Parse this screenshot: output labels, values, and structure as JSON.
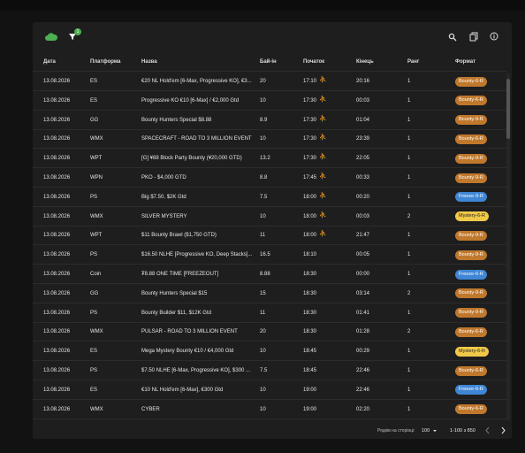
{
  "toolbar": {
    "filter_count": "1"
  },
  "table": {
    "headers": [
      "Дата",
      "Платформа",
      "Назва",
      "Бай-ін",
      "Початок",
      "Кінець",
      "Ранг",
      "Формат"
    ],
    "rows": [
      {
        "cells": [
          "13.08.2026",
          "ES",
          "€20 NL Hold'em [6-Max, Progressive KO], €3...",
          "20",
          "17:10",
          "20:16",
          "1",
          "Bounty-6-R"
        ],
        "late": true,
        "kind": "bounty"
      },
      {
        "cells": [
          "13.08.2026",
          "ES",
          "Progressive KO €10 [6-Max] / €2,000 Gtd",
          "10",
          "17:30",
          "00:03",
          "1",
          "Bounty-6-R"
        ],
        "late": true,
        "kind": "bounty"
      },
      {
        "cells": [
          "13.08.2026",
          "GG",
          "Bounty Hunters Special $8.88",
          "8.9",
          "17:30",
          "01:04",
          "1",
          "Bounty-9-R"
        ],
        "late": true,
        "kind": "bounty"
      },
      {
        "cells": [
          "13.08.2026",
          "WMX",
          "SPACECRAFT - ROAD TO 3 MILLION EVENT",
          "10",
          "17:30",
          "23:39",
          "1",
          "Bounty-6-R"
        ],
        "late": true,
        "kind": "bounty"
      },
      {
        "cells": [
          "13.08.2026",
          "WPT",
          "[G] ¥88 Block Party Bounty (¥20,000 GTD)",
          "13.2",
          "17:30",
          "22:05",
          "1",
          "Bounty-9-R"
        ],
        "late": true,
        "kind": "bounty"
      },
      {
        "cells": [
          "13.08.2026",
          "WPN",
          "PKO - $4,000 GTD",
          "8.8",
          "17:45",
          "00:33",
          "1",
          "Bounty-9-R"
        ],
        "late": true,
        "kind": "bounty"
      },
      {
        "cells": [
          "13.08.2026",
          "PS",
          "Big $7.50, $2K Gtd",
          "7.5",
          "18:00",
          "00:20",
          "1",
          "Freeze-9-R"
        ],
        "late": true,
        "kind": "freeze"
      },
      {
        "cells": [
          "13.08.2026",
          "WMX",
          "SILVER MYSTERY",
          "10",
          "18:00",
          "00:03",
          "2",
          "Mystery-6-R"
        ],
        "late": true,
        "kind": "mystery"
      },
      {
        "cells": [
          "13.08.2026",
          "WPT",
          "$11 Bounty Brawl ($1,750 GTD)",
          "11",
          "18:00",
          "21:47",
          "1",
          "Bounty-9-R"
        ],
        "late": true,
        "kind": "bounty"
      },
      {
        "cells": [
          "13.08.2026",
          "PS",
          "$16.50 NLHE [Progressive KO, Deep Stacks]...",
          "16.5",
          "18:10",
          "00:05",
          "1",
          "Bounty-9-R"
        ],
        "late": false,
        "kind": "bounty"
      },
      {
        "cells": [
          "13.08.2026",
          "Coin",
          "₮8.88 ONE TIME [FREEZEOUT]",
          "8.88",
          "18:30",
          "00:00",
          "1",
          "Freeze-6-R"
        ],
        "late": false,
        "kind": "freeze"
      },
      {
        "cells": [
          "13.08.2026",
          "GG",
          "Bounty Hunters Special $15",
          "15",
          "18:30",
          "03:14",
          "2",
          "Bounty-9-R"
        ],
        "late": false,
        "kind": "bounty"
      },
      {
        "cells": [
          "13.08.2026",
          "PS",
          "Bounty Builder $11, $12K Gtd",
          "11",
          "18:30",
          "01:41",
          "1",
          "Bounty-9-R"
        ],
        "late": false,
        "kind": "bounty"
      },
      {
        "cells": [
          "13.08.2026",
          "WMX",
          "PULSAR - ROAD TO 3 MILLION EVENT",
          "20",
          "18:30",
          "01:28",
          "2",
          "Bounty-6-R"
        ],
        "late": false,
        "kind": "bounty"
      },
      {
        "cells": [
          "13.08.2026",
          "ES",
          "Mega Mystery Bounty €10 / €4,000 Gtd",
          "10",
          "18:45",
          "00:29",
          "1",
          "Mystery-6-R"
        ],
        "late": false,
        "kind": "mystery"
      },
      {
        "cells": [
          "13.08.2026",
          "PS",
          "$7.50 NLHE [6-Max, Progressive KO], $300 ...",
          "7.5",
          "18:45",
          "22:46",
          "1",
          "Bounty-6-R"
        ],
        "late": false,
        "kind": "bounty"
      },
      {
        "cells": [
          "13.08.2026",
          "ES",
          "€10 NL Hold'em [6-Max], €300 Gtd",
          "10",
          "19:00",
          "22:46",
          "1",
          "Freeze-6-R"
        ],
        "late": false,
        "kind": "freeze"
      },
      {
        "cells": [
          "13.08.2026",
          "WMX",
          "CYBER",
          "10",
          "19:00",
          "02:20",
          "1",
          "Bounty-6-R"
        ],
        "late": false,
        "kind": "bounty"
      }
    ]
  },
  "footer": {
    "rows_per_page_label": "Рядків на сторінці:",
    "rows_per_page": "100",
    "range": "1-100 з 850"
  }
}
